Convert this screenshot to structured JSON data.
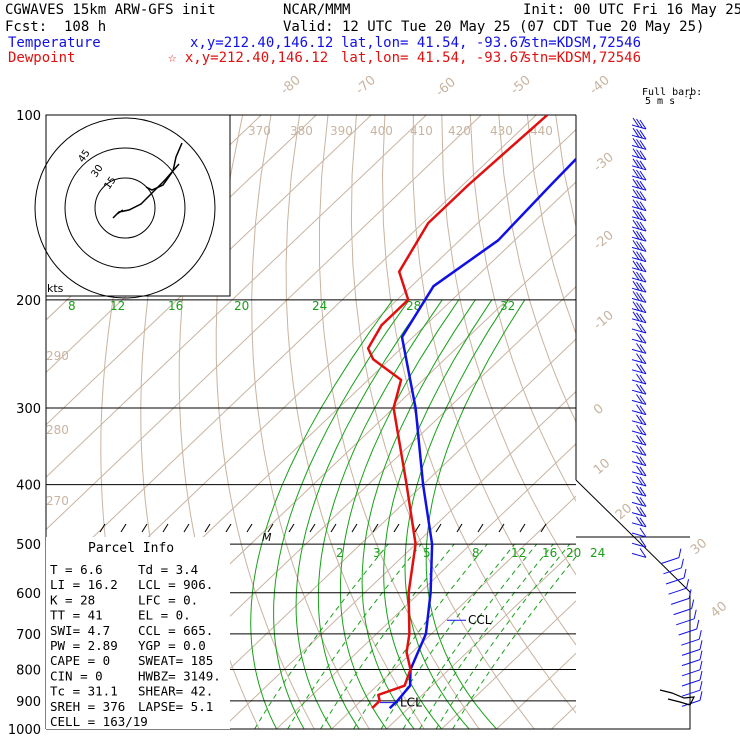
{
  "header": {
    "model": "CGWAVES 15km ARW-GFS init",
    "org": "NCAR/MMM",
    "init": "Init: 00 UTC Fri 16 May 25",
    "fcst": "Fcst:  108 h",
    "valid": "Valid: 12 UTC Tue 20 May 25 (07 CDT Tue 20 May 25)",
    "temp_label": "Temperature",
    "temp_xy": "x,y=212.40,146.12",
    "temp_latlon": "lat,lon= 41.54, -93.67",
    "temp_stn": "stn=KDSM,72546",
    "dew_label": "Dewpoint",
    "dew_xy": "☆ x,y=212.40,146.12",
    "dew_latlon": "lat,lon= 41.54, -93.67",
    "dew_stn": "stn=KDSM,72546"
  },
  "colors": {
    "temperature": "#1010e6",
    "dewpoint": "#e01010",
    "mixing_ratio": "#18a018",
    "isotherm": "#c8b4a0",
    "grid": "#000000"
  },
  "barb_legend": {
    "line1": "Full barb:",
    "line2": "5 m s",
    "sup": "-1"
  },
  "hodograph": {
    "units": "kts",
    "ring_labels": [
      "15",
      "30",
      "45"
    ]
  },
  "parcel": {
    "title": "Parcel Info",
    "rows": [
      [
        "T  =    6.6",
        "Td =    3.4"
      ],
      [
        "LI =   16.2",
        "LCL =  906."
      ],
      [
        "K  =     28",
        "LFC =    0."
      ],
      [
        "TT =     41",
        "EL  =    0."
      ],
      [
        "SWI=    4.7",
        "CCL =  665."
      ],
      [
        "PW =   2.89",
        "YGP =   0.0"
      ],
      [
        "CAPE =    0",
        "SWEAT=  185"
      ],
      [
        "CIN  =    0",
        "HWBZ= 3149."
      ],
      [
        "Tc   = 31.1",
        "SHEAR= 42."
      ],
      [
        "SREH =  376",
        "LAPSE= 5.1"
      ],
      [
        "CELL = 163/19",
        ""
      ]
    ]
  },
  "chart_data": {
    "type": "line",
    "diagram": "skew-T log-p",
    "y_axis": {
      "tick_labels": [
        "100",
        "200",
        "300",
        "400",
        "500",
        "600",
        "700",
        "800",
        "900",
        "1000"
      ]
    },
    "isotherm_labels": [
      "-80",
      "-70",
      "-60",
      "-50",
      "-40",
      "-30",
      "-20",
      "-10",
      "0",
      "10",
      "20",
      "30",
      "40"
    ],
    "theta_labels": [
      "370",
      "380",
      "390",
      "400",
      "410",
      "420",
      "430",
      "440",
      "290",
      "280",
      "270"
    ],
    "mixing_ratio_labels_upper": [
      "8",
      "12",
      "16",
      "20",
      "24",
      "28",
      "32"
    ],
    "mixing_ratio_labels_lower": [
      "2",
      "3",
      "5",
      "8",
      "12",
      "16",
      "20",
      "24"
    ],
    "annotations": {
      "ccl": "CCL",
      "lcl": "LCL",
      "m": "M"
    },
    "series": [
      {
        "name": "Temperature",
        "points": [
          [
            100,
            -65
          ],
          [
            130,
            -64
          ],
          [
            160,
            -63
          ],
          [
            190,
            -66
          ],
          [
            230,
            -62
          ],
          [
            300,
            -46
          ],
          [
            400,
            -30
          ],
          [
            500,
            -17
          ],
          [
            600,
            -8
          ],
          [
            700,
            -1
          ],
          [
            800,
            3
          ],
          [
            850,
            6
          ],
          [
            900,
            6.6
          ],
          [
            925,
            6.6
          ]
        ]
      },
      {
        "name": "Dewpoint",
        "points": [
          [
            100,
            -78
          ],
          [
            130,
            -79
          ],
          [
            150,
            -79
          ],
          [
            180,
            -75
          ],
          [
            200,
            -68
          ],
          [
            220,
            -68
          ],
          [
            240,
            -66
          ],
          [
            250,
            -63
          ],
          [
            270,
            -54
          ],
          [
            300,
            -50
          ],
          [
            400,
            -33
          ],
          [
            500,
            -20
          ],
          [
            600,
            -12
          ],
          [
            700,
            -4
          ],
          [
            750,
            -1
          ],
          [
            800,
            3
          ],
          [
            850,
            5
          ],
          [
            880,
            2
          ],
          [
            900,
            3.4
          ],
          [
            925,
            3.4
          ]
        ]
      }
    ],
    "hodograph_trace": [
      [
        -1,
        -1
      ],
      [
        -4,
        -3
      ],
      [
        -6,
        -5
      ],
      [
        -3,
        -2
      ],
      [
        2,
        -1
      ],
      [
        8,
        2
      ],
      [
        14,
        8
      ],
      [
        20,
        14
      ],
      [
        27,
        22
      ]
    ]
  }
}
